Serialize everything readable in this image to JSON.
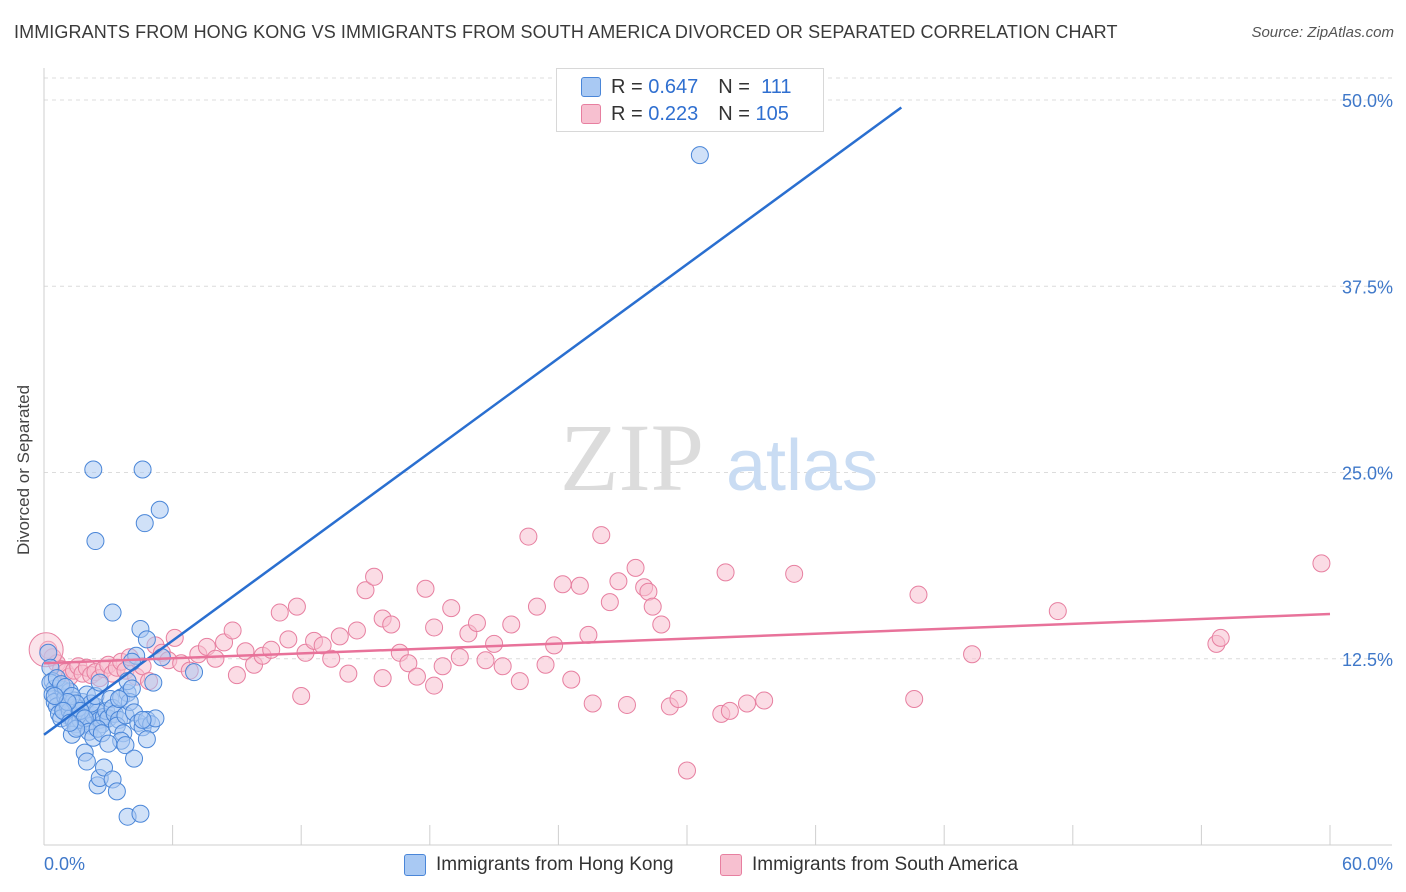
{
  "title": "IMMIGRANTS FROM HONG KONG VS IMMIGRANTS FROM SOUTH AMERICA DIVORCED OR SEPARATED CORRELATION CHART",
  "source": "Source: ZipAtlas.com",
  "watermark": {
    "zip": "ZIP",
    "atlas": "atlas"
  },
  "legend": {
    "rows": [
      {
        "r_label": "R =",
        "r_value": "0.647",
        "n_label": "N =",
        "n_value": "111"
      },
      {
        "r_label": "R =",
        "r_value": "0.223",
        "n_label": "N =",
        "n_value": "105"
      }
    ]
  },
  "colors": {
    "blue_fill": "#a9c9f3",
    "blue_stroke": "#4a86d8",
    "blue_line": "#2a6fd0",
    "pink_fill": "#f7c0d0",
    "pink_stroke": "#e77fa0",
    "pink_line": "#e8729a",
    "axis_text": "#3f78c9",
    "grid": "#dcdcdc"
  },
  "chart_data": {
    "type": "scatter",
    "title": "IMMIGRANTS FROM HONG KONG VS IMMIGRANTS FROM SOUTH AMERICA DIVORCED OR SEPARATED CORRELATION CHART",
    "xlabel": "",
    "ylabel": "Divorced or Separated",
    "xlim": [
      0,
      60
    ],
    "ylim": [
      0,
      50
    ],
    "x_tick_labels": [
      "0.0%",
      "60.0%"
    ],
    "y_ticks": [
      12.5,
      25.0,
      37.5,
      50.0
    ],
    "y_tick_labels": [
      "12.5%",
      "25.0%",
      "37.5%",
      "50.0%"
    ],
    "grid": true,
    "legend_position": "top-center",
    "series": [
      {
        "name": "Immigrants from Hong Kong",
        "color": "#a9c9f3",
        "trend": {
          "x": [
            0,
            40
          ],
          "y": [
            7.4,
            49.5
          ]
        },
        "points": [
          [
            0.2,
            12.9
          ],
          [
            0.3,
            11.9
          ],
          [
            0.4,
            11.0
          ],
          [
            0.5,
            10.5
          ],
          [
            0.6,
            10.2
          ],
          [
            0.7,
            9.8
          ],
          [
            0.8,
            9.5
          ],
          [
            0.9,
            9.2
          ],
          [
            1.0,
            8.9
          ],
          [
            1.1,
            8.7
          ],
          [
            0.3,
            10.9
          ],
          [
            0.4,
            10.1
          ],
          [
            0.5,
            9.6
          ],
          [
            0.6,
            9.3
          ],
          [
            0.7,
            8.8
          ],
          [
            0.8,
            8.5
          ],
          [
            0.9,
            10.4
          ],
          [
            1.0,
            9.9
          ],
          [
            1.1,
            9.4
          ],
          [
            1.2,
            9.0
          ],
          [
            1.3,
            8.6
          ],
          [
            1.4,
            8.3
          ],
          [
            1.5,
            8.1
          ],
          [
            1.6,
            7.9
          ],
          [
            1.7,
            8.4
          ],
          [
            1.8,
            8.8
          ],
          [
            1.9,
            9.1
          ],
          [
            2.0,
            8.6
          ],
          [
            2.1,
            8.3
          ],
          [
            2.2,
            8.0
          ],
          [
            2.3,
            8.7
          ],
          [
            2.4,
            9.3
          ],
          [
            2.5,
            8.9
          ],
          [
            2.6,
            8.4
          ],
          [
            2.7,
            8.1
          ],
          [
            2.8,
            8.6
          ],
          [
            2.9,
            9.0
          ],
          [
            3.0,
            8.5
          ],
          [
            1.2,
            10.3
          ],
          [
            1.4,
            9.7
          ],
          [
            1.6,
            9.2
          ],
          [
            1.8,
            9.6
          ],
          [
            2.0,
            10.1
          ],
          [
            2.2,
            9.5
          ],
          [
            2.4,
            10.0
          ],
          [
            0.6,
            11.2
          ],
          [
            0.8,
            10.8
          ],
          [
            1.0,
            10.6
          ],
          [
            1.3,
            10.0
          ],
          [
            1.5,
            9.5
          ],
          [
            1.7,
            9.0
          ],
          [
            1.9,
            8.5
          ],
          [
            2.1,
            7.6
          ],
          [
            2.3,
            7.2
          ],
          [
            2.5,
            7.8
          ],
          [
            2.7,
            7.5
          ],
          [
            1.3,
            7.4
          ],
          [
            1.5,
            7.8
          ],
          [
            3.1,
            9.8
          ],
          [
            3.2,
            9.2
          ],
          [
            3.3,
            8.8
          ],
          [
            3.5,
            8.4
          ],
          [
            3.6,
            9.9
          ],
          [
            3.4,
            8.0
          ],
          [
            3.7,
            7.5
          ],
          [
            3.8,
            8.7
          ],
          [
            3.9,
            10.2
          ],
          [
            4.0,
            9.6
          ],
          [
            4.2,
            8.9
          ],
          [
            4.4,
            8.2
          ],
          [
            4.6,
            7.9
          ],
          [
            4.8,
            8.4
          ],
          [
            5.0,
            8.1
          ],
          [
            3.9,
            11.0
          ],
          [
            4.1,
            10.5
          ],
          [
            4.3,
            12.7
          ],
          [
            4.5,
            14.5
          ],
          [
            3.2,
            15.6
          ],
          [
            2.4,
            20.4
          ],
          [
            2.3,
            25.2
          ],
          [
            4.6,
            25.2
          ],
          [
            5.4,
            22.5
          ],
          [
            4.7,
            21.6
          ],
          [
            4.8,
            13.8
          ],
          [
            5.1,
            10.9
          ],
          [
            5.5,
            12.6
          ],
          [
            7.0,
            11.6
          ],
          [
            1.9,
            6.2
          ],
          [
            2.0,
            5.6
          ],
          [
            3.6,
            7.0
          ],
          [
            3.8,
            6.7
          ],
          [
            4.2,
            5.8
          ],
          [
            2.5,
            4.0
          ],
          [
            2.6,
            4.5
          ],
          [
            2.8,
            5.2
          ],
          [
            3.2,
            4.4
          ],
          [
            3.4,
            3.6
          ],
          [
            3.9,
            1.9
          ],
          [
            4.5,
            2.1
          ],
          [
            3.0,
            6.8
          ],
          [
            4.8,
            7.1
          ],
          [
            3.5,
            9.8
          ],
          [
            1.1,
            9.6
          ],
          [
            0.9,
            9.0
          ],
          [
            1.2,
            8.2
          ],
          [
            2.6,
            10.9
          ],
          [
            4.1,
            12.3
          ],
          [
            5.2,
            8.5
          ],
          [
            4.6,
            8.4
          ],
          [
            30.6,
            46.3
          ],
          [
            0.5,
            10.0
          ]
        ]
      },
      {
        "name": "Immigrants from South America",
        "color": "#f7c0d0",
        "trend": {
          "x": [
            0,
            60
          ],
          "y": [
            12.2,
            15.5
          ]
        },
        "points": [
          [
            0.2,
            13.1
          ],
          [
            0.4,
            12.6
          ],
          [
            0.6,
            12.2
          ],
          [
            0.8,
            11.8
          ],
          [
            1.0,
            11.6
          ],
          [
            1.2,
            11.3
          ],
          [
            1.4,
            11.7
          ],
          [
            1.6,
            12.0
          ],
          [
            1.8,
            11.5
          ],
          [
            2.0,
            11.9
          ],
          [
            2.2,
            11.4
          ],
          [
            2.4,
            11.6
          ],
          [
            2.6,
            11.2
          ],
          [
            2.8,
            11.8
          ],
          [
            3.0,
            12.1
          ],
          [
            3.2,
            11.5
          ],
          [
            3.4,
            11.9
          ],
          [
            3.6,
            12.3
          ],
          [
            3.8,
            11.7
          ],
          [
            4.0,
            12.6
          ],
          [
            4.3,
            11.3
          ],
          [
            4.6,
            12.0
          ],
          [
            4.9,
            11.0
          ],
          [
            5.2,
            13.4
          ],
          [
            5.5,
            12.9
          ],
          [
            5.8,
            12.4
          ],
          [
            6.1,
            13.9
          ],
          [
            6.4,
            12.2
          ],
          [
            6.8,
            11.7
          ],
          [
            7.2,
            12.8
          ],
          [
            7.6,
            13.3
          ],
          [
            8.0,
            12.5
          ],
          [
            8.4,
            13.6
          ],
          [
            8.8,
            14.4
          ],
          [
            9.0,
            11.4
          ],
          [
            9.4,
            13.0
          ],
          [
            9.8,
            12.1
          ],
          [
            10.2,
            12.7
          ],
          [
            10.6,
            13.1
          ],
          [
            11.0,
            15.6
          ],
          [
            11.4,
            13.8
          ],
          [
            11.8,
            16.0
          ],
          [
            12.2,
            12.9
          ],
          [
            12.6,
            13.7
          ],
          [
            13.0,
            13.4
          ],
          [
            13.4,
            12.5
          ],
          [
            13.8,
            14.0
          ],
          [
            14.2,
            11.5
          ],
          [
            14.6,
            14.4
          ],
          [
            15.0,
            17.1
          ],
          [
            15.4,
            18.0
          ],
          [
            15.8,
            15.2
          ],
          [
            16.2,
            14.8
          ],
          [
            16.6,
            12.9
          ],
          [
            17.0,
            12.2
          ],
          [
            17.4,
            11.3
          ],
          [
            17.8,
            17.2
          ],
          [
            18.2,
            14.6
          ],
          [
            18.6,
            12.0
          ],
          [
            19.0,
            15.9
          ],
          [
            19.4,
            12.6
          ],
          [
            19.8,
            14.2
          ],
          [
            20.2,
            14.9
          ],
          [
            20.6,
            12.4
          ],
          [
            21.0,
            13.5
          ],
          [
            21.4,
            12.0
          ],
          [
            21.8,
            14.8
          ],
          [
            22.2,
            11.0
          ],
          [
            22.6,
            20.7
          ],
          [
            23.0,
            16.0
          ],
          [
            23.4,
            12.1
          ],
          [
            23.8,
            13.4
          ],
          [
            24.2,
            17.5
          ],
          [
            24.6,
            11.1
          ],
          [
            25.0,
            17.4
          ],
          [
            25.4,
            14.1
          ],
          [
            25.6,
            9.5
          ],
          [
            26.0,
            20.8
          ],
          [
            26.4,
            16.3
          ],
          [
            26.8,
            17.7
          ],
          [
            27.2,
            9.4
          ],
          [
            27.6,
            18.6
          ],
          [
            28.0,
            17.3
          ],
          [
            28.2,
            17.0
          ],
          [
            28.4,
            16.0
          ],
          [
            28.8,
            14.8
          ],
          [
            29.2,
            9.3
          ],
          [
            29.6,
            9.8
          ],
          [
            30.0,
            5.0
          ],
          [
            31.6,
            8.8
          ],
          [
            31.8,
            18.3
          ],
          [
            32.0,
            9.0
          ],
          [
            32.8,
            9.5
          ],
          [
            33.6,
            9.7
          ],
          [
            35.0,
            18.2
          ],
          [
            40.6,
            9.8
          ],
          [
            40.8,
            16.8
          ],
          [
            43.3,
            12.8
          ],
          [
            47.3,
            15.7
          ],
          [
            54.7,
            13.5
          ],
          [
            54.9,
            13.9
          ],
          [
            59.6,
            18.9
          ],
          [
            12.0,
            10.0
          ],
          [
            15.8,
            11.2
          ],
          [
            18.2,
            10.7
          ]
        ]
      }
    ]
  },
  "bottom_legend": {
    "items": [
      {
        "label": "Immigrants from Hong Kong"
      },
      {
        "label": "Immigrants from South America"
      }
    ]
  }
}
